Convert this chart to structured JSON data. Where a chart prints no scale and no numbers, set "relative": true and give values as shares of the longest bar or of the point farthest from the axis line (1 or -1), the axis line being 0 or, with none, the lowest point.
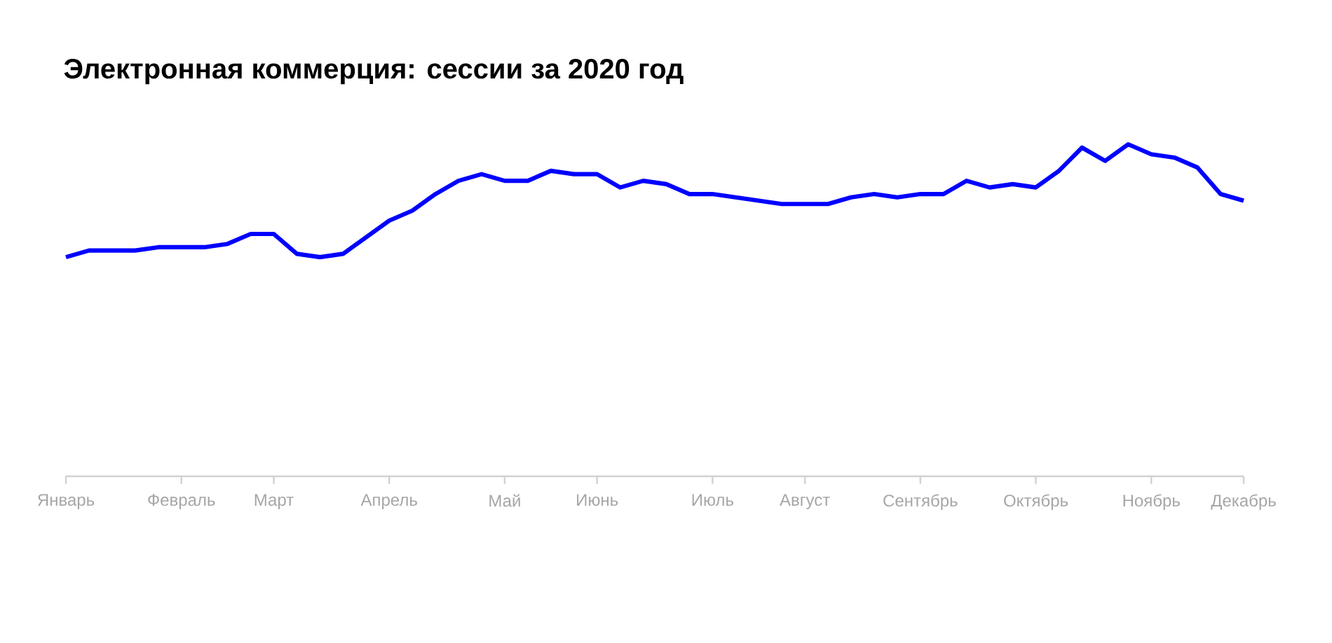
{
  "chart_data": {
    "type": "line",
    "title": "Электронная коммерция: сессии за 2020 год",
    "relative": true,
    "color": "#0000ff",
    "categories": [
      "Январь",
      null,
      null,
      null,
      null,
      "Февраль",
      null,
      null,
      null,
      "Март",
      null,
      null,
      null,
      null,
      "Апрель",
      null,
      null,
      null,
      null,
      "Май",
      null,
      null,
      null,
      "Июнь",
      null,
      null,
      null,
      null,
      "Июль",
      null,
      null,
      null,
      "Август",
      null,
      null,
      null,
      null,
      "Сентябрь",
      null,
      null,
      null,
      null,
      "Октябрь",
      null,
      null,
      null,
      null,
      "Ноябрь",
      null,
      null,
      null,
      "Декабрь"
    ],
    "values": [
      0.66,
      0.68,
      0.68,
      0.68,
      0.69,
      0.69,
      0.69,
      0.7,
      0.73,
      0.73,
      0.67,
      0.66,
      0.67,
      0.72,
      0.77,
      0.8,
      0.85,
      0.89,
      0.91,
      0.89,
      0.89,
      0.92,
      0.91,
      0.91,
      0.87,
      0.89,
      0.88,
      0.85,
      0.85,
      0.84,
      0.83,
      0.82,
      0.82,
      0.82,
      0.84,
      0.85,
      0.84,
      0.85,
      0.85,
      0.89,
      0.87,
      0.88,
      0.87,
      0.92,
      0.99,
      0.95,
      1.0,
      0.97,
      0.96,
      0.93,
      0.85,
      0.83
    ]
  }
}
